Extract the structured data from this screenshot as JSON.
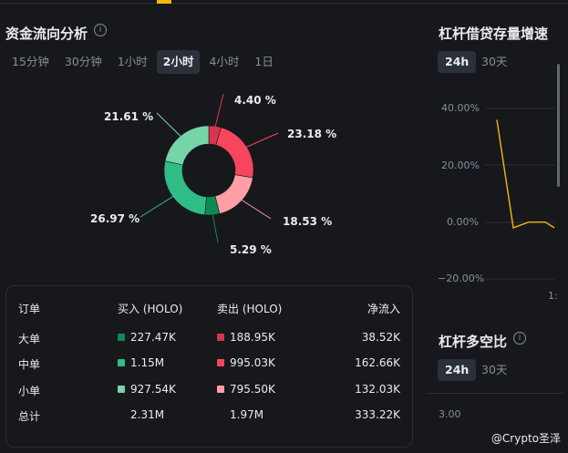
{
  "flow": {
    "title": "资金流向分析",
    "timeframes": [
      "15分钟",
      "30分钟",
      "1小时",
      "2小时",
      "4小时",
      "1日"
    ],
    "active_timeframe": "2小时",
    "donut_segments": [
      {
        "label": "4.40 %",
        "value": 4.4,
        "color": "#d6364e"
      },
      {
        "label": "23.18 %",
        "value": 23.18,
        "color": "#f6465d"
      },
      {
        "label": "18.53 %",
        "value": 18.53,
        "color": "#ff9ea6"
      },
      {
        "label": "5.29 %",
        "value": 5.29,
        "color": "#0e8a56"
      },
      {
        "label": "26.97 %",
        "value": 26.97,
        "color": "#2ebd85"
      },
      {
        "label": "21.61 %",
        "value": 21.61,
        "color": "#76d4a9"
      }
    ]
  },
  "table": {
    "headers": [
      "订单",
      "买入 (HOLO)",
      "卖出 (HOLO)",
      "净流入"
    ],
    "rows": [
      {
        "type": "大单",
        "buy": "227.47K",
        "sell": "188.95K",
        "net": "38.52K",
        "buy_color": "#0e8a56",
        "sell_color": "#d6364e"
      },
      {
        "type": "中单",
        "buy": "1.15M",
        "sell": "995.03K",
        "net": "162.66K",
        "buy_color": "#2ebd85",
        "sell_color": "#f6465d"
      },
      {
        "type": "小单",
        "buy": "927.54K",
        "sell": "795.50K",
        "net": "132.03K",
        "buy_color": "#76d4a9",
        "sell_color": "#ff9ea6"
      },
      {
        "type": "总计",
        "buy": "2.31M",
        "sell": "1.97M",
        "net": "333.22K"
      }
    ]
  },
  "margin_growth": {
    "title": "杠杆借贷存量增速",
    "pills": [
      "24h",
      "30天"
    ],
    "active_pill": "24h",
    "y_ticks": [
      "40.00%",
      "20.00%",
      "0.00%",
      "−20.00%"
    ],
    "x_tick_partial": "1:",
    "chart_data": {
      "type": "line",
      "xlabel": "",
      "ylabel": "",
      "ylim": [
        -20,
        40
      ],
      "series": [
        {
          "values": [
            36,
            -2,
            0,
            0,
            -2
          ],
          "color": "#f0b90b"
        }
      ]
    }
  },
  "long_short": {
    "title": "杠杆多空比",
    "pills": [
      "24h",
      "30天"
    ],
    "active_pill": "24h",
    "y_tick": "3.00"
  },
  "watermark": "@Crypto圣泽"
}
